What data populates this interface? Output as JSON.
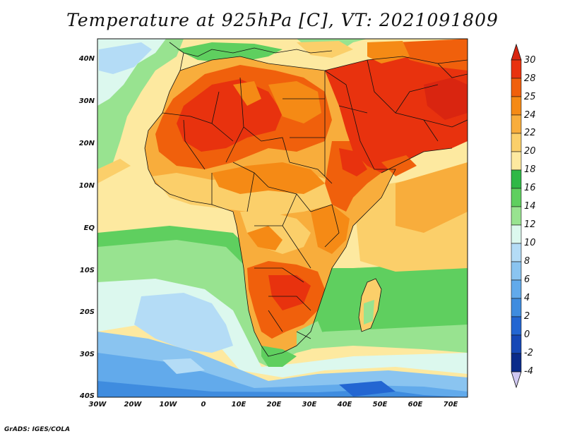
{
  "title": "Temperature at 925hPa [C], VT: 2021091809",
  "credit": "GrADS: IGES/COLA",
  "map": {
    "region": "Africa and Arabian Peninsula",
    "variable": "Temperature",
    "level": "925hPa",
    "units": "C",
    "valid_time": "2021091809",
    "lon_range": [
      -30,
      75
    ],
    "lat_range": [
      -40,
      45
    ],
    "lat_labels": [
      "40N",
      "30N",
      "20N",
      "10N",
      "EQ",
      "10S",
      "20S",
      "30S",
      "40S"
    ],
    "lon_labels": [
      "30W",
      "20W",
      "10W",
      "0",
      "10E",
      "20E",
      "30E",
      "40E",
      "50E",
      "60E",
      "70E"
    ]
  },
  "colorbar": {
    "levels": [
      "30",
      "28",
      "25",
      "24",
      "22",
      "20",
      "18",
      "16",
      "14",
      "12",
      "10",
      "8",
      "6",
      "4",
      "2",
      "0",
      "-2",
      "-4"
    ],
    "colors": [
      "#e8320e",
      "#f0600c",
      "#f58a15",
      "#f8ad3c",
      "#fbcf6a",
      "#fde9a0",
      "#2fb846",
      "#5fcf5f",
      "#98e390",
      "#dcf8ee",
      "#b4dcf6",
      "#8ac4f0",
      "#62aaeb",
      "#3f8cdf",
      "#2366d2",
      "#1648b6",
      "#0a2b8a",
      "#d0c8f2"
    ],
    "top_color": "#d92510",
    "bottom_color": "#d0c8f2"
  }
}
